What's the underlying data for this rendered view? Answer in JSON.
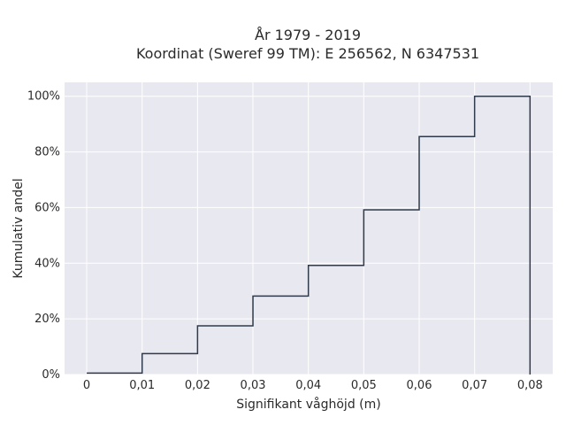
{
  "chart_data": {
    "type": "line",
    "step": true,
    "title_lines": [
      "År 1979 - 2019",
      "Koordinat (Sweref 99 TM): E 256562, N 6347531"
    ],
    "xlabel": "Signifikant våghöjd (m)",
    "ylabel": "Kumulativ andel",
    "xlim": [
      -0.004,
      0.0841
    ],
    "ylim": [
      0,
      1.05
    ],
    "x_ticks": [
      0,
      0.01,
      0.02,
      0.03,
      0.04,
      0.05,
      0.06,
      0.07,
      0.08
    ],
    "x_tick_labels": [
      "0",
      "0,01",
      "0,02",
      "0,03",
      "0,04",
      "0,05",
      "0,06",
      "0,07",
      "0,08"
    ],
    "y_ticks": [
      0,
      0.2,
      0.4,
      0.6,
      0.8,
      1.0
    ],
    "y_tick_labels": [
      "0%",
      "20%",
      "40%",
      "60%",
      "80%",
      "100%"
    ],
    "bin_edges": [
      0,
      0.01,
      0.02,
      0.03,
      0.04,
      0.05,
      0.06,
      0.07,
      0.08
    ],
    "values": [
      0.005,
      0.075,
      0.175,
      0.282,
      0.392,
      0.592,
      0.855,
      1.0
    ],
    "grid": true,
    "colors": {
      "line": "#2f3a4a",
      "plot_bg": "#e8e8f0",
      "grid": "#ffffff"
    }
  }
}
